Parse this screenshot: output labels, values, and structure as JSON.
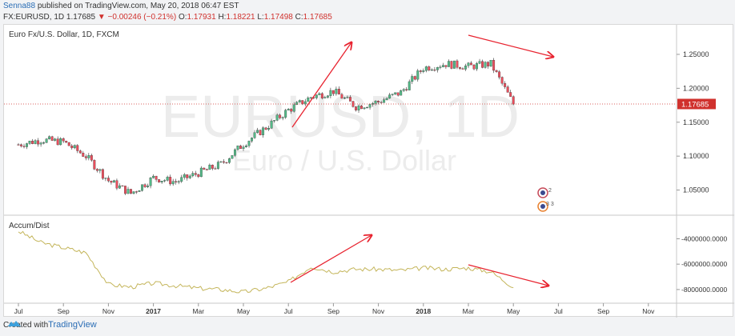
{
  "header": {
    "author": "Senna88",
    "published_text": "published on TradingView.com, May 20, 2018 06:47 EST",
    "symbol": "FX:EURUSD, 1D",
    "last": "1.17685",
    "change": "−0.00246 (−0.21%)",
    "open_label": "O:",
    "open": "1.17931",
    "high_label": "H:",
    "high": "1.18221",
    "low_label": "L:",
    "low": "1.17498",
    "close_label": "C:",
    "close": "1.17685"
  },
  "main_pane": {
    "title": "Euro Fx/U.S. Dollar, 1D, FXCM",
    "watermark_big": "EURUSD, 1D",
    "watermark_small": "Euro / U.S. Dollar",
    "price_ticks": [
      "1.25000",
      "1.20000",
      "1.15000",
      "1.10000",
      "1.05000"
    ],
    "last_price_label": "1.17685",
    "event_badges": [
      "2",
      "3 3"
    ]
  },
  "indicator_pane": {
    "title": "Accum/Dist",
    "ticks": [
      "-4000000.0000",
      "-6000000.0000",
      "-8000000.0000"
    ]
  },
  "time_axis": [
    "Jul",
    "Sep",
    "Nov",
    "2017",
    "Mar",
    "May",
    "Jul",
    "Sep",
    "Nov",
    "2018",
    "Mar",
    "May",
    "Jul",
    "Sep",
    "Nov"
  ],
  "footer": {
    "created_with": "Created with",
    "brand": "TradingView"
  },
  "colors": {
    "up": "#53b987",
    "down": "#eb4d5c",
    "accum": "#c4b55a",
    "arrow": "#e8232f",
    "lastline": "#d0312d"
  },
  "chart_data": {
    "type": "line",
    "x": [
      "2016-07",
      "2016-08",
      "2016-09",
      "2016-10",
      "2016-11",
      "2016-12",
      "2017-01",
      "2017-02",
      "2017-03",
      "2017-04",
      "2017-05",
      "2017-06",
      "2017-07",
      "2017-08",
      "2017-09",
      "2017-10",
      "2017-11",
      "2017-12",
      "2018-01",
      "2018-02",
      "2018-03",
      "2018-04",
      "2018-05"
    ],
    "series": [
      {
        "values": [
          1.117,
          1.124,
          1.121,
          1.1,
          1.064,
          1.045,
          1.068,
          1.062,
          1.075,
          1.088,
          1.118,
          1.142,
          1.168,
          1.187,
          1.196,
          1.173,
          1.18,
          1.194,
          1.23,
          1.236,
          1.232,
          1.236,
          1.177
        ]
      },
      {
        "values": [
          -3400000,
          -4300000,
          -4700000,
          -5100000,
          -7600000,
          -7800000,
          -7500000,
          -7700000,
          -7900000,
          -8000000,
          -8200000,
          -7900000,
          -7400000,
          -6200000,
          -6600000,
          -6400000,
          -6400000,
          -6500000,
          -6300000,
          -6400000,
          -6300000,
          -6600000,
          -7800000
        ]
      }
    ],
    "ylim_price": [
      1.02,
      1.27
    ],
    "ylim_accum": [
      -8700000,
      -2900000
    ]
  }
}
